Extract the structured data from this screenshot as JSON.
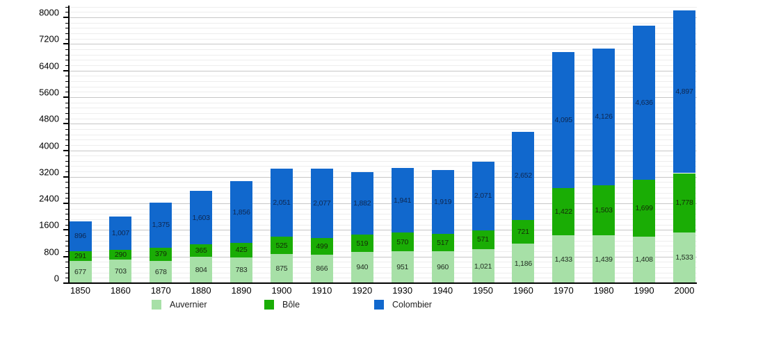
{
  "chart_data": {
    "type": "bar",
    "stacked": true,
    "title": "",
    "xlabel": "",
    "ylabel": "",
    "categories": [
      "1850",
      "1860",
      "1870",
      "1880",
      "1890",
      "1900",
      "1910",
      "1920",
      "1930",
      "1940",
      "1950",
      "1960",
      "1970",
      "1980",
      "1990",
      "2000"
    ],
    "series": [
      {
        "name": "Auvernier",
        "color": "#a7e0a7",
        "label_color": "#1f2a1f",
        "values": [
          677,
          703,
          678,
          804,
          783,
          875,
          866,
          940,
          951,
          960,
          1021,
          1186,
          1433,
          1439,
          1408,
          1533
        ]
      },
      {
        "name": "Bôle",
        "color": "#1aad05",
        "label_color": "#132a08",
        "values": [
          291,
          290,
          379,
          365,
          425,
          525,
          499,
          519,
          570,
          517,
          571,
          721,
          1422,
          1503,
          1699,
          1778
        ]
      },
      {
        "name": "Colombier",
        "color": "#1168cd",
        "label_color": "#0e2750",
        "values": [
          896,
          1007,
          1375,
          1603,
          1856,
          2051,
          2077,
          1882,
          1941,
          1919,
          2071,
          2652,
          4095,
          4126,
          4636,
          4897
        ]
      }
    ],
    "ylim": [
      0,
      8355
    ],
    "ytick_major_interval": 800,
    "ytick_minor_interval": 160,
    "ytick_labels": [
      "0",
      "800",
      "1600",
      "2400",
      "3200",
      "4000",
      "4800",
      "5600",
      "6400",
      "7200",
      "8000"
    ],
    "grid": "on",
    "legend_position": "bottom"
  },
  "legend": {
    "items": [
      {
        "label": "Auvernier"
      },
      {
        "label": "Bôle"
      },
      {
        "label": "Colombier"
      }
    ]
  }
}
